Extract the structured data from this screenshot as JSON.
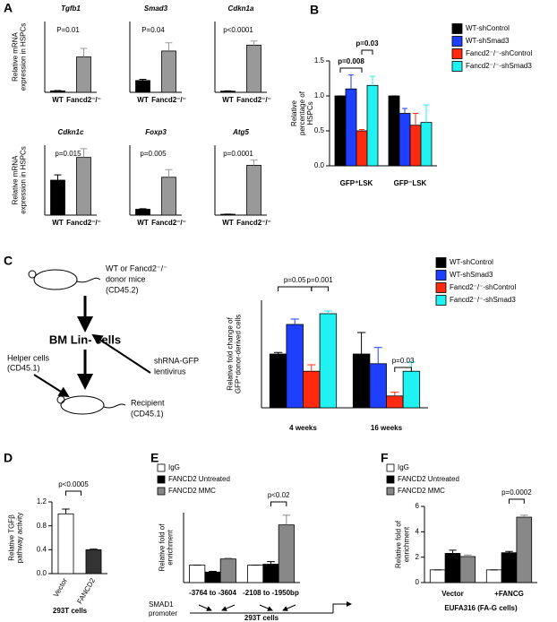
{
  "panels": [
    "A",
    "B",
    "C",
    "D",
    "E",
    "F"
  ],
  "diagram": {
    "lines": [
      "WT or Fancd2⁻/⁻",
      "donor mice",
      "(CD45.2)",
      "BM Lin- cells",
      "Helper cells",
      "(CD45.1)",
      "shRNA-GFP",
      "lentivirus",
      "Recipient",
      "(CD45.1)"
    ]
  },
  "chart_data": [
    {
      "type": "bar",
      "title": "Tgfb1",
      "y_label": "Relative mRNA expression in HSPCs",
      "categories": [
        "WT",
        "Fancd2⁻/⁻"
      ],
      "values": [
        1,
        25
      ],
      "errors": [
        0.3,
        6
      ],
      "colors": [
        "#000000",
        "#999999"
      ],
      "ylim": [
        0,
        50
      ],
      "annotations": [
        "P=0.01"
      ]
    },
    {
      "type": "bar",
      "title": "Smad3",
      "categories": [
        "WT",
        "Fancd2⁻/⁻"
      ],
      "values": [
        1,
        3.5
      ],
      "errors": [
        0.1,
        0.7
      ],
      "colors": [
        "#000000",
        "#999999"
      ],
      "ylim": [
        0,
        6
      ],
      "annotations": [
        "P=0.04"
      ]
    },
    {
      "type": "bar",
      "title": "Cdkn1a",
      "categories": [
        "WT",
        "Fancd2⁻/⁻"
      ],
      "values": [
        1,
        40
      ],
      "errors": [
        0.2,
        3.5
      ],
      "colors": [
        "#000000",
        "#999999"
      ],
      "ylim": [
        0,
        60
      ],
      "annotations": [
        "p<0.0001"
      ]
    },
    {
      "type": "bar",
      "title": "Cdkn1c",
      "y_label": "Relative mRNA expression in HSPCs",
      "categories": [
        "WT",
        "Fancd2⁻/⁻"
      ],
      "values": [
        1,
        1.65
      ],
      "errors": [
        0.15,
        0.25
      ],
      "colors": [
        "#000000",
        "#999999"
      ],
      "ylim": [
        0,
        2
      ],
      "annotations": [
        "p=0.015"
      ]
    },
    {
      "type": "bar",
      "title": "Foxp3",
      "categories": [
        "WT",
        "Fancd2⁻/⁻"
      ],
      "values": [
        1,
        6.5
      ],
      "errors": [
        0.1,
        1.3
      ],
      "colors": [
        "#000000",
        "#999999"
      ],
      "ylim": [
        0,
        12
      ],
      "annotations": [
        "p=0.005"
      ]
    },
    {
      "type": "bar",
      "title": "Atg5",
      "categories": [
        "WT",
        "Fancd2⁻/⁻"
      ],
      "values": [
        1,
        57
      ],
      "errors": [
        0.1,
        6
      ],
      "colors": [
        "#000000",
        "#999999"
      ],
      "ylim": [
        0,
        80
      ],
      "annotations": [
        "p=0.0001"
      ]
    },
    {
      "type": "bar",
      "y_label": "Relative percentage of HSPCs",
      "categories": [
        "GFP⁺LSK",
        "GFP⁻LSK"
      ],
      "series": [
        {
          "name": "WT-shControl",
          "color": "#000000",
          "values": [
            1.0,
            1.0
          ],
          "errors": [
            0,
            0
          ]
        },
        {
          "name": "WT-shSmad3",
          "color": "#1f3fff",
          "values": [
            1.1,
            0.75
          ],
          "errors": [
            0.2,
            0.07
          ]
        },
        {
          "name": "Fancd2⁻/⁻-shControl",
          "color": "#ff2a10",
          "values": [
            0.5,
            0.58
          ],
          "errors": [
            0.02,
            0.17
          ]
        },
        {
          "name": "Fancd2⁻/⁻-shSmad3",
          "color": "#20f2f2",
          "values": [
            1.15,
            0.62
          ],
          "errors": [
            0.13,
            0.25
          ]
        }
      ],
      "ylim": [
        0,
        1.5
      ],
      "yticks": [
        {
          "value": 0,
          "label": "0.0"
        },
        0.5,
        {
          "value": 1,
          "label": "1.0"
        },
        1.5
      ],
      "annotations": [
        "p=0.008",
        "p=0.03"
      ]
    },
    {
      "type": "bar",
      "y_label": "Relative fold change of GFP⁺donor-derived cells",
      "categories": [
        "4 weeks",
        "16 weeks"
      ],
      "series": [
        {
          "name": "WT-shControl",
          "color": "#000000",
          "values": [
            1.0,
            1.0
          ],
          "errors": [
            0.03,
            0.4
          ]
        },
        {
          "name": "WT-shSmad3",
          "color": "#1f3fff",
          "values": [
            1.55,
            0.82
          ],
          "errors": [
            0.1,
            0.3
          ]
        },
        {
          "name": "Fancd2⁻/⁻-shControl",
          "color": "#ff2a10",
          "values": [
            0.68,
            0.22
          ],
          "errors": [
            0.12,
            0.07
          ]
        },
        {
          "name": "Fancd2⁻/⁻-shSmad3",
          "color": "#20f2f2",
          "values": [
            1.75,
            0.68
          ],
          "errors": [
            0.05,
            0.17
          ]
        }
      ],
      "ylim": [
        0,
        2
      ],
      "annotations": [
        "p=0.05",
        "p=0.001",
        "p=0.03"
      ]
    },
    {
      "type": "bar",
      "y_label": "Relative TGFβ pathway activity",
      "categories": [
        "Vector",
        "FANCD2"
      ],
      "values": [
        1,
        0.4
      ],
      "errors": [
        0.08,
        0.015
      ],
      "colors": [
        "#ffffff",
        "#333333"
      ],
      "ylim": [
        0,
        1.2
      ],
      "yticks": [
        {
          "value": 0,
          "label": "0.0"
        },
        0.4,
        0.8,
        1.2
      ],
      "annotations": [
        "p<0.0005"
      ],
      "x_label": "293T cells"
    },
    {
      "type": "bar",
      "y_label": "Relative fold of enrichment",
      "categories": [
        "-3764 to -3604",
        "-2108 to -1950bp"
      ],
      "series": [
        {
          "name": "IgG",
          "color": "#ffffff",
          "values": [
            1,
            1
          ],
          "errors": [
            0,
            0
          ]
        },
        {
          "name": "FANCD2 Untreated",
          "color": "#000000",
          "values": [
            0.6,
            1.05
          ],
          "errors": [
            0.04,
            0.15
          ]
        },
        {
          "name": "FANCD2 MMC",
          "color": "#888888",
          "values": [
            1.35,
            3.3
          ],
          "errors": [
            0.05,
            0.55
          ]
        }
      ],
      "ylim": [
        0,
        4
      ],
      "annotations": [
        "p<0.02"
      ],
      "notes": [
        "SMAD1",
        "promoter"
      ],
      "x_label": "293T cells"
    },
    {
      "type": "bar",
      "y_label": "Relative fold of enrichment",
      "categories": [
        "Vector",
        "+FANCG"
      ],
      "series": [
        {
          "name": "IgG",
          "color": "#ffffff",
          "values": [
            1,
            1
          ],
          "errors": [
            0,
            0
          ]
        },
        {
          "name": "FANCD2 Untreated",
          "color": "#000000",
          "values": [
            2.3,
            2.35
          ],
          "errors": [
            0.25,
            0.1
          ]
        },
        {
          "name": "FANCD2 MMC",
          "color": "#888888",
          "values": [
            2.05,
            5.15
          ],
          "errors": [
            0.12,
            0.15
          ]
        }
      ],
      "ylim": [
        0,
        6
      ],
      "yticks": [
        0,
        2,
        4,
        6
      ],
      "annotations": [
        "p=0.0002"
      ],
      "x_label": "EUFA316 (FA-G cells)"
    }
  ]
}
